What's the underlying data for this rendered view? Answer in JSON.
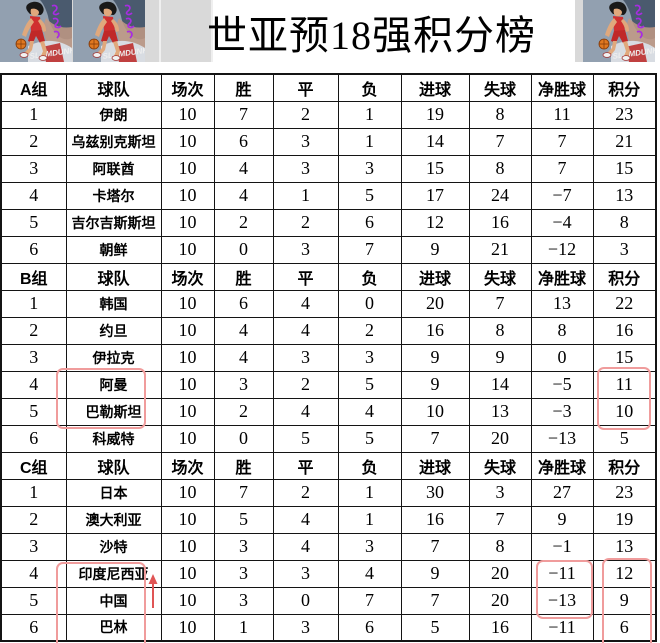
{
  "title": "世亚预18强积分榜",
  "colors": {
    "annotation_box": "#f09c9c",
    "annotation_arrow": "#e05555",
    "table_border": "#141414",
    "band_gray": "#d9d9d9",
    "image_bg": "#92a0b0",
    "watermark_purple": "#a82ce2"
  },
  "decor": {
    "player_image": "basketball-player-dribbling-illustration",
    "left_copies": 2,
    "right_copies": 1
  },
  "chart_data": {
    "type": "table",
    "title": "世亚预18强积分榜",
    "columns": [
      "球队",
      "场次",
      "胜",
      "平",
      "负",
      "进球",
      "失球",
      "净胜球",
      "积分"
    ],
    "groups": [
      {
        "label": "A组",
        "rows": [
          {
            "rank": "1",
            "name": "伊朗",
            "played": "10",
            "win": "7",
            "draw": "2",
            "loss": "1",
            "gf": "19",
            "ga": "8",
            "gd": "11",
            "pts": "23"
          },
          {
            "rank": "2",
            "name": "乌兹别克斯坦",
            "played": "10",
            "win": "6",
            "draw": "3",
            "loss": "1",
            "gf": "14",
            "ga": "7",
            "gd": "7",
            "pts": "21"
          },
          {
            "rank": "3",
            "name": "阿联酋",
            "played": "10",
            "win": "4",
            "draw": "3",
            "loss": "3",
            "gf": "15",
            "ga": "8",
            "gd": "7",
            "pts": "15"
          },
          {
            "rank": "4",
            "name": "卡塔尔",
            "played": "10",
            "win": "4",
            "draw": "1",
            "loss": "5",
            "gf": "17",
            "ga": "24",
            "gd": "−7",
            "pts": "13"
          },
          {
            "rank": "5",
            "name": "吉尔吉斯斯坦",
            "played": "10",
            "win": "2",
            "draw": "2",
            "loss": "6",
            "gf": "12",
            "ga": "16",
            "gd": "−4",
            "pts": "8"
          },
          {
            "rank": "6",
            "name": "朝鲜",
            "played": "10",
            "win": "0",
            "draw": "3",
            "loss": "7",
            "gf": "9",
            "ga": "21",
            "gd": "−12",
            "pts": "3"
          }
        ]
      },
      {
        "label": "B组",
        "rows": [
          {
            "rank": "1",
            "name": "韩国",
            "played": "10",
            "win": "6",
            "draw": "4",
            "loss": "0",
            "gf": "20",
            "ga": "7",
            "gd": "13",
            "pts": "22"
          },
          {
            "rank": "2",
            "name": "约旦",
            "played": "10",
            "win": "4",
            "draw": "4",
            "loss": "2",
            "gf": "16",
            "ga": "8",
            "gd": "8",
            "pts": "16"
          },
          {
            "rank": "3",
            "name": "伊拉克",
            "played": "10",
            "win": "4",
            "draw": "3",
            "loss": "3",
            "gf": "9",
            "ga": "9",
            "gd": "0",
            "pts": "15"
          },
          {
            "rank": "4",
            "name": "阿曼",
            "played": "10",
            "win": "3",
            "draw": "2",
            "loss": "5",
            "gf": "9",
            "ga": "14",
            "gd": "−5",
            "pts": "11"
          },
          {
            "rank": "5",
            "name": "巴勒斯坦",
            "played": "10",
            "win": "2",
            "draw": "4",
            "loss": "4",
            "gf": "10",
            "ga": "13",
            "gd": "−3",
            "pts": "10"
          },
          {
            "rank": "6",
            "name": "科威特",
            "played": "10",
            "win": "0",
            "draw": "5",
            "loss": "5",
            "gf": "7",
            "ga": "20",
            "gd": "−13",
            "pts": "5"
          }
        ]
      },
      {
        "label": "C组",
        "rows": [
          {
            "rank": "1",
            "name": "日本",
            "played": "10",
            "win": "7",
            "draw": "2",
            "loss": "1",
            "gf": "30",
            "ga": "3",
            "gd": "27",
            "pts": "23"
          },
          {
            "rank": "2",
            "name": "澳大利亚",
            "played": "10",
            "win": "5",
            "draw": "4",
            "loss": "1",
            "gf": "16",
            "ga": "7",
            "gd": "9",
            "pts": "19"
          },
          {
            "rank": "3",
            "name": "沙特",
            "played": "10",
            "win": "3",
            "draw": "4",
            "loss": "3",
            "gf": "7",
            "ga": "8",
            "gd": "−1",
            "pts": "13"
          },
          {
            "rank": "4",
            "name": "印度尼西亚",
            "played": "10",
            "win": "3",
            "draw": "3",
            "loss": "4",
            "gf": "9",
            "ga": "20",
            "gd": "−11",
            "pts": "12"
          },
          {
            "rank": "5",
            "name": "中国",
            "played": "10",
            "win": "3",
            "draw": "0",
            "loss": "7",
            "gf": "7",
            "ga": "20",
            "gd": "−13",
            "pts": "9"
          },
          {
            "rank": "6",
            "name": "巴林",
            "played": "10",
            "win": "1",
            "draw": "3",
            "loss": "6",
            "gf": "5",
            "ga": "16",
            "gd": "−11",
            "pts": "6"
          }
        ]
      }
    ],
    "annotations": [
      {
        "shape": "box",
        "group": "B组",
        "column": "球队",
        "rows": [
          "阿曼",
          "巴勒斯坦"
        ]
      },
      {
        "shape": "box",
        "group": "B组",
        "column": "积分",
        "values": [
          "11",
          "10"
        ]
      },
      {
        "shape": "box",
        "group": "C组",
        "column": "球队",
        "rows": [
          "印度尼西亚",
          "中国",
          "巴林"
        ]
      },
      {
        "shape": "box",
        "group": "C组",
        "column": "净胜球",
        "values": [
          "−11",
          "−13"
        ]
      },
      {
        "shape": "box",
        "group": "C组",
        "column": "积分",
        "values": [
          "12",
          "9",
          "6"
        ]
      },
      {
        "shape": "arrow-up",
        "group": "C组",
        "between": [
          "印度尼西亚",
          "中国"
        ]
      }
    ]
  }
}
